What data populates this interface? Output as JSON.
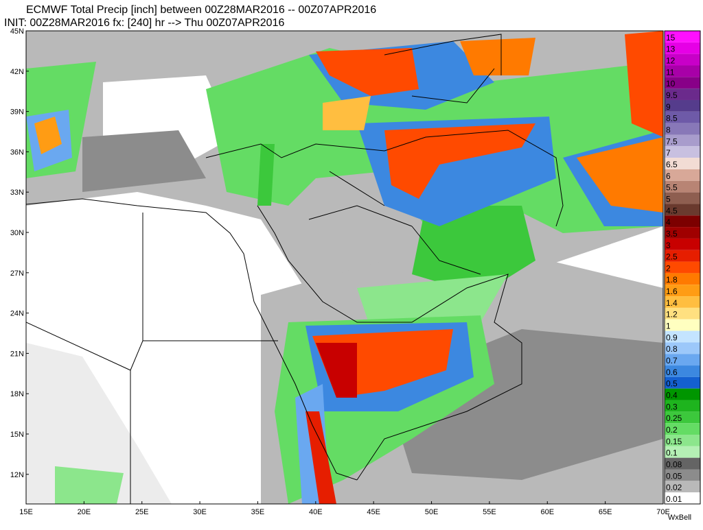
{
  "header": {
    "line1": "ECMWF Total Precip [inch] between 00Z28MAR2016 -- 00Z07APR2016",
    "line2": "INIT: 00Z28MAR2016 fx: [240] hr --> Thu 00Z07APR2016"
  },
  "map": {
    "latitude_labels": [
      "45N",
      "42N",
      "39N",
      "36N",
      "33N",
      "30N",
      "27N",
      "24N",
      "21N",
      "18N",
      "15N",
      "12N"
    ],
    "longitude_labels": [
      "15E",
      "20E",
      "25E",
      "30E",
      "35E",
      "40E",
      "45E",
      "50E",
      "55E",
      "60E",
      "65E",
      "70E"
    ]
  },
  "legend": {
    "entries": [
      {
        "label": "15",
        "color": "#ff10ff"
      },
      {
        "label": "13",
        "color": "#e600e6"
      },
      {
        "label": "12",
        "color": "#c800c8"
      },
      {
        "label": "11",
        "color": "#a800a8"
      },
      {
        "label": "10",
        "color": "#880088"
      },
      {
        "label": "9.5",
        "color": "#6b2a8c"
      },
      {
        "label": "9",
        "color": "#553c8c"
      },
      {
        "label": "8.5",
        "color": "#6e5aa8"
      },
      {
        "label": "8",
        "color": "#8878b8"
      },
      {
        "label": "7.5",
        "color": "#a89ccc"
      },
      {
        "label": "7",
        "color": "#c8c0e0"
      },
      {
        "label": "6.5",
        "color": "#f2dcd4"
      },
      {
        "label": "6",
        "color": "#d8a898"
      },
      {
        "label": "5.5",
        "color": "#b88474"
      },
      {
        "label": "5",
        "color": "#8e5e50"
      },
      {
        "label": "4.5",
        "color": "#6a3a2e"
      },
      {
        "label": "4",
        "color": "#7c0000"
      },
      {
        "label": "3.5",
        "color": "#a00000"
      },
      {
        "label": "3",
        "color": "#c80000"
      },
      {
        "label": "2.5",
        "color": "#e61e00"
      },
      {
        "label": "2",
        "color": "#ff4a00"
      },
      {
        "label": "1.8",
        "color": "#ff7a00"
      },
      {
        "label": "1.6",
        "color": "#ff9c14"
      },
      {
        "label": "1.4",
        "color": "#ffbe40"
      },
      {
        "label": "1.2",
        "color": "#ffe080"
      },
      {
        "label": "1",
        "color": "#ffffc0"
      },
      {
        "label": "0.9",
        "color": "#c4e4ff"
      },
      {
        "label": "0.8",
        "color": "#9cc8fa"
      },
      {
        "label": "0.7",
        "color": "#6aa8f0"
      },
      {
        "label": "0.6",
        "color": "#3c88e0"
      },
      {
        "label": "0.5",
        "color": "#1460d0"
      },
      {
        "label": "0.4",
        "color": "#009600"
      },
      {
        "label": "0.3",
        "color": "#1eb41e"
      },
      {
        "label": "0.25",
        "color": "#3cc83c"
      },
      {
        "label": "0.2",
        "color": "#64dc64"
      },
      {
        "label": "0.15",
        "color": "#8ce68c"
      },
      {
        "label": "0.1",
        "color": "#b4f0b4"
      },
      {
        "label": "0.08",
        "color": "#646464"
      },
      {
        "label": "0.05",
        "color": "#8c8c8c"
      },
      {
        "label": "0.02",
        "color": "#b9b9b9"
      },
      {
        "label": "0.01",
        "color": "#ffffff"
      }
    ]
  },
  "footer": {
    "brand": "WxBell"
  }
}
